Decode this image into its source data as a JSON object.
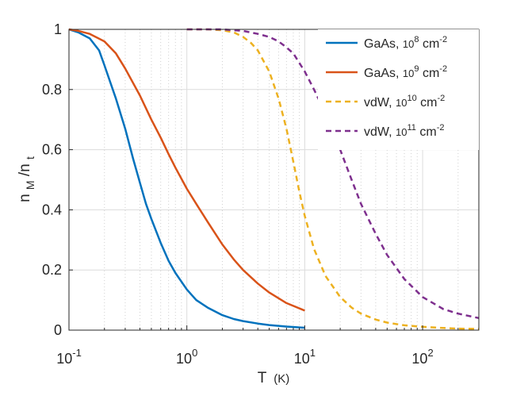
{
  "chart_data": {
    "type": "line",
    "title": "",
    "xlabel": {
      "main": "T",
      "unit": "(K)"
    },
    "ylabel": {
      "n": "n",
      "sub_m": "M",
      "slash": "/n",
      "sub_t": "t"
    },
    "xscale": "log",
    "xlim": [
      0.1,
      300
    ],
    "ylim": [
      0,
      1
    ],
    "grid": true,
    "minor_grid_x": true,
    "legend_position": "top-right",
    "x_ticks": [
      {
        "base": "10",
        "exp": "-1",
        "value": 0.1
      },
      {
        "base": "10",
        "exp": "0",
        "value": 1
      },
      {
        "base": "10",
        "exp": "1",
        "value": 10
      },
      {
        "base": "10",
        "exp": "2",
        "value": 100
      }
    ],
    "y_ticks": [
      {
        "label": "0",
        "value": 0
      },
      {
        "label": "0.2",
        "value": 0.2
      },
      {
        "label": "0.4",
        "value": 0.4
      },
      {
        "label": "0.6",
        "value": 0.6
      },
      {
        "label": "0.8",
        "value": 0.8
      },
      {
        "label": "1",
        "value": 1
      }
    ],
    "series": [
      {
        "name": "GaAs, 10^8 cm^-2",
        "legend": {
          "prefix": "GaAs, ",
          "base": "10",
          "exp": "8",
          "unit": " cm",
          "unit_exp": "-2"
        },
        "color": "#0072BD",
        "dash": "solid",
        "x": [
          0.1,
          0.12,
          0.15,
          0.18,
          0.2,
          0.25,
          0.3,
          0.35,
          0.4,
          0.45,
          0.5,
          0.6,
          0.7,
          0.8,
          1.0,
          1.2,
          1.5,
          2,
          2.5,
          3,
          4,
          5,
          7,
          10
        ],
        "y": [
          1.0,
          0.99,
          0.97,
          0.93,
          0.88,
          0.77,
          0.67,
          0.57,
          0.49,
          0.42,
          0.37,
          0.29,
          0.23,
          0.19,
          0.135,
          0.1,
          0.075,
          0.05,
          0.037,
          0.03,
          0.022,
          0.017,
          0.012,
          0.008
        ]
      },
      {
        "name": "GaAs, 10^9 cm^-2",
        "legend": {
          "prefix": "GaAs, ",
          "base": "10",
          "exp": "9",
          "unit": " cm",
          "unit_exp": "-2"
        },
        "color": "#D95319",
        "dash": "solid",
        "x": [
          0.1,
          0.12,
          0.15,
          0.2,
          0.25,
          0.3,
          0.4,
          0.5,
          0.6,
          0.7,
          0.8,
          1.0,
          1.2,
          1.5,
          2,
          2.5,
          3,
          4,
          5,
          7,
          10
        ],
        "y": [
          1.0,
          0.995,
          0.985,
          0.96,
          0.92,
          0.87,
          0.78,
          0.7,
          0.64,
          0.585,
          0.54,
          0.47,
          0.42,
          0.36,
          0.285,
          0.235,
          0.2,
          0.155,
          0.125,
          0.09,
          0.065
        ]
      },
      {
        "name": "vdW, 10^10 cm^-2",
        "legend": {
          "prefix": "vdW, ",
          "base": "10",
          "exp": "10",
          "unit": " cm",
          "unit_exp": "-2"
        },
        "color": "#EDB120",
        "dash": "dashed",
        "x": [
          1.0,
          1.5,
          2,
          2.5,
          3,
          3.5,
          4,
          5,
          6,
          7,
          8,
          9,
          10,
          12,
          15,
          20,
          25,
          30,
          40,
          50,
          70,
          100,
          150,
          200,
          300
        ],
        "y": [
          1.0,
          1.0,
          0.997,
          0.99,
          0.975,
          0.955,
          0.93,
          0.86,
          0.77,
          0.67,
          0.56,
          0.46,
          0.38,
          0.27,
          0.18,
          0.11,
          0.075,
          0.055,
          0.035,
          0.025,
          0.016,
          0.011,
          0.007,
          0.005,
          0.004
        ]
      },
      {
        "name": "vdW, 10^11 cm^-2",
        "legend": {
          "prefix": "vdW, ",
          "base": "10",
          "exp": "11",
          "unit": " cm",
          "unit_exp": "-2"
        },
        "color": "#7E2F8E",
        "dash": "dashed",
        "x": [
          1.0,
          2,
          3,
          4,
          5,
          6,
          7,
          8,
          10,
          12,
          15,
          20,
          25,
          30,
          40,
          50,
          70,
          100,
          150,
          200,
          300
        ],
        "y": [
          1.0,
          1.0,
          0.995,
          0.985,
          0.975,
          0.96,
          0.94,
          0.92,
          0.86,
          0.8,
          0.72,
          0.6,
          0.5,
          0.42,
          0.32,
          0.25,
          0.17,
          0.11,
          0.07,
          0.055,
          0.04
        ]
      }
    ]
  }
}
